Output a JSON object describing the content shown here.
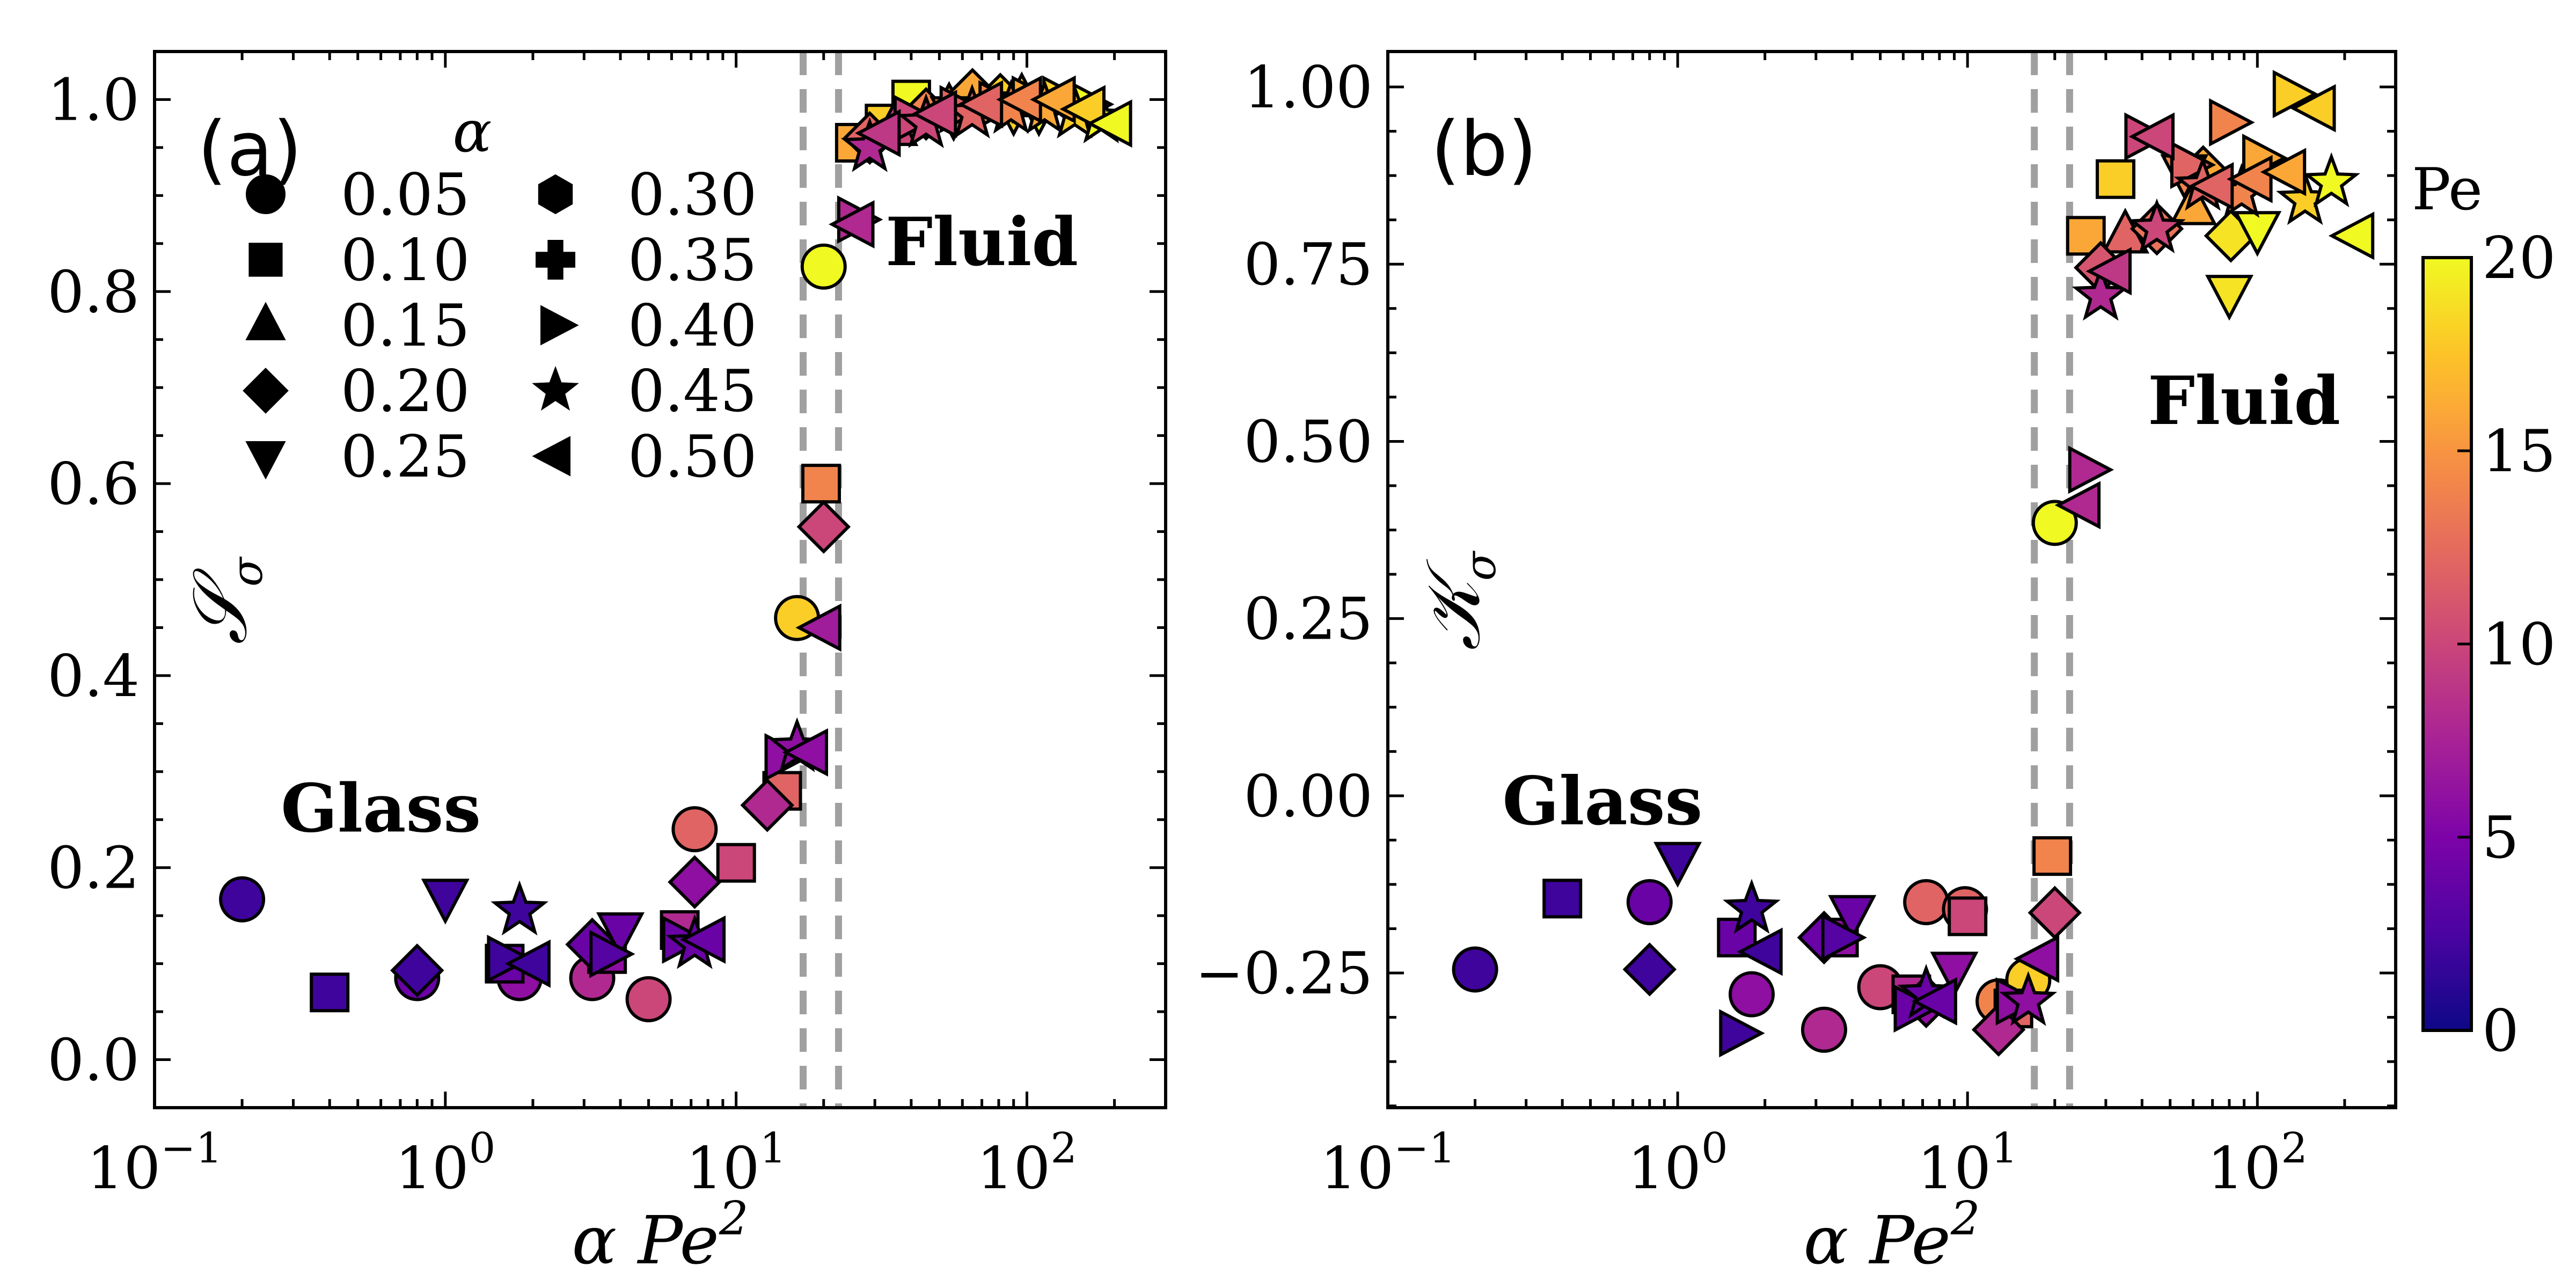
{
  "chart_data": [
    {
      "type": "scatter",
      "panel_label": "(a)",
      "ylabel": "S_σ",
      "ylabel_display": "𝒮",
      "ylabel_sub": "σ",
      "xlabel": "α Pe²",
      "xlabel_prefix": "α Pe",
      "xlabel_sup": "2",
      "xscale": "log",
      "xlim": [
        0.1,
        300
      ],
      "ylim": [
        -0.05,
        1.05
      ],
      "yticks": [
        0.0,
        0.2,
        0.4,
        0.6,
        0.8,
        1.0
      ],
      "ytick_labels": [
        "0.0",
        "0.2",
        "0.4",
        "0.6",
        "0.8",
        "1.0"
      ],
      "xticks": [
        0.1,
        1,
        10,
        100
      ],
      "xtick_bases": [
        "10",
        "10",
        "10",
        "10"
      ],
      "xtick_exps": [
        "−1",
        "0",
        "1",
        "2"
      ],
      "vlines": [
        17,
        22.5
      ],
      "annotations": [
        {
          "text": "Glass",
          "x": 0.6,
          "y": 0.26
        },
        {
          "text": "Fluid",
          "x": 70,
          "y": 0.85
        }
      ],
      "legend": {
        "title": "α",
        "placement": "upper-left",
        "entries": [
          {
            "marker": "circle",
            "label": "0.05"
          },
          {
            "marker": "square",
            "label": "0.10"
          },
          {
            "marker": "triangle-up",
            "label": "0.15"
          },
          {
            "marker": "diamond",
            "label": "0.20"
          },
          {
            "marker": "triangle-down",
            "label": "0.25"
          },
          {
            "marker": "hexagon",
            "label": "0.30"
          },
          {
            "marker": "plus",
            "label": "0.35"
          },
          {
            "marker": "triangle-right",
            "label": "0.40"
          },
          {
            "marker": "star",
            "label": "0.45"
          },
          {
            "marker": "triangle-left",
            "label": "0.50"
          }
        ]
      },
      "points": [
        {
          "m": "circle",
          "x": 0.2,
          "y": 0.167,
          "pe": 2
        },
        {
          "m": "circle",
          "x": 0.8,
          "y": 0.085,
          "pe": 4
        },
        {
          "m": "circle",
          "x": 1.8,
          "y": 0.085,
          "pe": 6
        },
        {
          "m": "circle",
          "x": 3.2,
          "y": 0.085,
          "pe": 8
        },
        {
          "m": "circle",
          "x": 5.0,
          "y": 0.063,
          "pe": 10
        },
        {
          "m": "circle",
          "x": 7.2,
          "y": 0.24,
          "pe": 12
        },
        {
          "m": "circle",
          "x": 16.2,
          "y": 0.46,
          "pe": 18
        },
        {
          "m": "circle",
          "x": 20,
          "y": 0.826,
          "pe": 20
        },
        {
          "m": "square",
          "x": 0.4,
          "y": 0.07,
          "pe": 2
        },
        {
          "m": "square",
          "x": 1.6,
          "y": 0.1,
          "pe": 4
        },
        {
          "m": "square",
          "x": 3.6,
          "y": 0.11,
          "pe": 6
        },
        {
          "m": "square",
          "x": 6.4,
          "y": 0.135,
          "pe": 8
        },
        {
          "m": "square",
          "x": 10,
          "y": 0.205,
          "pe": 10
        },
        {
          "m": "square",
          "x": 14.4,
          "y": 0.28,
          "pe": 12
        },
        {
          "m": "square",
          "x": 19.6,
          "y": 0.6,
          "pe": 14
        },
        {
          "m": "square",
          "x": 25.6,
          "y": 0.955,
          "pe": 16
        },
        {
          "m": "square",
          "x": 32.4,
          "y": 0.975,
          "pe": 18
        },
        {
          "m": "square",
          "x": 40,
          "y": 1.0,
          "pe": 20
        },
        {
          "m": "triangle-up",
          "x": 35,
          "y": 0.97,
          "pe": 10
        },
        {
          "m": "triangle-up",
          "x": 54,
          "y": 0.99,
          "pe": 14
        },
        {
          "m": "triangle-up",
          "x": 96,
          "y": 1.0,
          "pe": 18
        },
        {
          "m": "diamond",
          "x": 0.8,
          "y": 0.093,
          "pe": 2
        },
        {
          "m": "diamond",
          "x": 3.2,
          "y": 0.12,
          "pe": 4
        },
        {
          "m": "diamond",
          "x": 7.2,
          "y": 0.185,
          "pe": 6
        },
        {
          "m": "diamond",
          "x": 12.8,
          "y": 0.265,
          "pe": 8
        },
        {
          "m": "diamond",
          "x": 20,
          "y": 0.555,
          "pe": 10
        },
        {
          "m": "diamond",
          "x": 28.8,
          "y": 0.96,
          "pe": 12
        },
        {
          "m": "diamond",
          "x": 45,
          "y": 0.985,
          "pe": 14
        },
        {
          "m": "diamond",
          "x": 65,
          "y": 1.005,
          "pe": 16
        },
        {
          "m": "diamond",
          "x": 81,
          "y": 1.0,
          "pe": 18
        },
        {
          "m": "triangle-down",
          "x": 1.0,
          "y": 0.17,
          "pe": 2
        },
        {
          "m": "triangle-down",
          "x": 4.0,
          "y": 0.135,
          "pe": 4
        },
        {
          "m": "triangle-down",
          "x": 56,
          "y": 0.985,
          "pe": 14
        },
        {
          "m": "triangle-down",
          "x": 90,
          "y": 0.99,
          "pe": 18
        },
        {
          "m": "triangle-down",
          "x": 110,
          "y": 0.99,
          "pe": 20
        },
        {
          "m": "triangle-right",
          "x": 1.6,
          "y": 0.105,
          "pe": 2
        },
        {
          "m": "triangle-right",
          "x": 3.6,
          "y": 0.11,
          "pe": 3
        },
        {
          "m": "triangle-right",
          "x": 6.4,
          "y": 0.125,
          "pe": 4
        },
        {
          "m": "triangle-right",
          "x": 14.4,
          "y": 0.315,
          "pe": 6
        },
        {
          "m": "triangle-right",
          "x": 25.6,
          "y": 0.875,
          "pe": 8
        },
        {
          "m": "triangle-right",
          "x": 40,
          "y": 0.98,
          "pe": 10
        },
        {
          "m": "triangle-right",
          "x": 57.6,
          "y": 0.99,
          "pe": 12
        },
        {
          "m": "triangle-right",
          "x": 78.4,
          "y": 0.995,
          "pe": 14
        },
        {
          "m": "triangle-right",
          "x": 102,
          "y": 1.0,
          "pe": 16
        },
        {
          "m": "triangle-right",
          "x": 130,
          "y": 1.0,
          "pe": 18
        },
        {
          "m": "triangle-right",
          "x": 160,
          "y": 0.995,
          "pe": 20
        },
        {
          "m": "star",
          "x": 1.8,
          "y": 0.155,
          "pe": 2
        },
        {
          "m": "star",
          "x": 7.2,
          "y": 0.12,
          "pe": 4
        },
        {
          "m": "star",
          "x": 16.2,
          "y": 0.325,
          "pe": 6
        },
        {
          "m": "star",
          "x": 28.8,
          "y": 0.95,
          "pe": 8
        },
        {
          "m": "star",
          "x": 45,
          "y": 0.975,
          "pe": 10
        },
        {
          "m": "star",
          "x": 64.8,
          "y": 0.985,
          "pe": 12
        },
        {
          "m": "star",
          "x": 88.2,
          "y": 0.99,
          "pe": 14
        },
        {
          "m": "star",
          "x": 115,
          "y": 0.99,
          "pe": 16
        },
        {
          "m": "star",
          "x": 146,
          "y": 0.985,
          "pe": 18
        },
        {
          "m": "star",
          "x": 180,
          "y": 0.98,
          "pe": 20
        },
        {
          "m": "triangle-left",
          "x": 2.0,
          "y": 0.1,
          "pe": 2
        },
        {
          "m": "triangle-left",
          "x": 8.0,
          "y": 0.125,
          "pe": 4
        },
        {
          "m": "triangle-left",
          "x": 18,
          "y": 0.32,
          "pe": 6
        },
        {
          "m": "triangle-left",
          "x": 20,
          "y": 0.45,
          "pe": 7
        },
        {
          "m": "triangle-left",
          "x": 26,
          "y": 0.87,
          "pe": 8
        },
        {
          "m": "triangle-left",
          "x": 32,
          "y": 0.965,
          "pe": 9
        },
        {
          "m": "triangle-left",
          "x": 50,
          "y": 0.985,
          "pe": 10
        },
        {
          "m": "triangle-left",
          "x": 72,
          "y": 0.995,
          "pe": 12
        },
        {
          "m": "triangle-left",
          "x": 98,
          "y": 1.0,
          "pe": 14
        },
        {
          "m": "triangle-left",
          "x": 128,
          "y": 1.0,
          "pe": 16
        },
        {
          "m": "triangle-left",
          "x": 162,
          "y": 0.99,
          "pe": 18
        },
        {
          "m": "triangle-left",
          "x": 200,
          "y": 0.975,
          "pe": 20
        }
      ]
    },
    {
      "type": "scatter",
      "panel_label": "(b)",
      "ylabel": "K_σ",
      "ylabel_display": "𝒦",
      "ylabel_sub": "σ",
      "xlabel": "α Pe²",
      "xlabel_prefix": "α Pe",
      "xlabel_sup": "2",
      "xscale": "log",
      "xlim": [
        0.1,
        300
      ],
      "ylim": [
        -0.44,
        1.05
      ],
      "yticks": [
        -0.25,
        0.0,
        0.25,
        0.5,
        0.75,
        1.0
      ],
      "ytick_labels": [
        "−0.25",
        "0.00",
        "0.25",
        "0.50",
        "0.75",
        "1.00"
      ],
      "xticks": [
        0.1,
        1,
        10,
        100
      ],
      "xtick_bases": [
        "10",
        "10",
        "10",
        "10"
      ],
      "xtick_exps": [
        "−1",
        "0",
        "1",
        "2"
      ],
      "vlines": [
        17,
        22.5
      ],
      "annotations": [
        {
          "text": "Glass",
          "x": 0.55,
          "y": -0.01
        },
        {
          "text": "Fluid",
          "x": 90,
          "y": 0.555
        }
      ],
      "colorbar": {
        "label": "Pe",
        "range": [
          0,
          20
        ],
        "ticks": [
          0,
          5,
          10,
          15,
          20
        ],
        "tick_labels": [
          "0",
          "5",
          "10",
          "15",
          "20"
        ],
        "colormap": "plasma"
      },
      "points": [
        {
          "m": "circle",
          "x": 0.2,
          "y": -0.245,
          "pe": 2
        },
        {
          "m": "circle",
          "x": 0.8,
          "y": -0.15,
          "pe": 4
        },
        {
          "m": "circle",
          "x": 1.8,
          "y": -0.28,
          "pe": 6
        },
        {
          "m": "circle",
          "x": 3.2,
          "y": -0.33,
          "pe": 8
        },
        {
          "m": "circle",
          "x": 5.0,
          "y": -0.27,
          "pe": 10
        },
        {
          "m": "circle",
          "x": 7.2,
          "y": -0.15,
          "pe": 12
        },
        {
          "m": "circle",
          "x": 9.8,
          "y": -0.16,
          "pe": 12
        },
        {
          "m": "circle",
          "x": 12.8,
          "y": -0.29,
          "pe": 14
        },
        {
          "m": "circle",
          "x": 16.2,
          "y": -0.26,
          "pe": 18
        },
        {
          "m": "circle",
          "x": 20,
          "y": 0.385,
          "pe": 20
        },
        {
          "m": "square",
          "x": 0.4,
          "y": -0.145,
          "pe": 2
        },
        {
          "m": "square",
          "x": 1.6,
          "y": -0.2,
          "pe": 4
        },
        {
          "m": "square",
          "x": 3.6,
          "y": -0.2,
          "pe": 6
        },
        {
          "m": "square",
          "x": 6.4,
          "y": -0.28,
          "pe": 8
        },
        {
          "m": "square",
          "x": 10,
          "y": -0.17,
          "pe": 10
        },
        {
          "m": "square",
          "x": 14.4,
          "y": -0.3,
          "pe": 12
        },
        {
          "m": "square",
          "x": 19.6,
          "y": -0.085,
          "pe": 14
        },
        {
          "m": "square",
          "x": 25.6,
          "y": 0.79,
          "pe": 16
        },
        {
          "m": "square",
          "x": 32.4,
          "y": 0.87,
          "pe": 18
        },
        {
          "m": "triangle-up",
          "x": 35,
          "y": 0.79,
          "pe": 12
        },
        {
          "m": "triangle-up",
          "x": 60,
          "y": 0.83,
          "pe": 16
        },
        {
          "m": "diamond",
          "x": 0.8,
          "y": -0.245,
          "pe": 2
        },
        {
          "m": "diamond",
          "x": 3.2,
          "y": -0.2,
          "pe": 4
        },
        {
          "m": "diamond",
          "x": 7.2,
          "y": -0.29,
          "pe": 6
        },
        {
          "m": "diamond",
          "x": 12.8,
          "y": -0.33,
          "pe": 8
        },
        {
          "m": "diamond",
          "x": 20,
          "y": -0.165,
          "pe": 10
        },
        {
          "m": "diamond",
          "x": 28.8,
          "y": 0.745,
          "pe": 11
        },
        {
          "m": "diamond",
          "x": 45,
          "y": 0.8,
          "pe": 13
        },
        {
          "m": "diamond",
          "x": 65,
          "y": 0.88,
          "pe": 16
        },
        {
          "m": "diamond",
          "x": 81,
          "y": 0.79,
          "pe": 19
        },
        {
          "m": "triangle-down",
          "x": 1.0,
          "y": -0.09,
          "pe": 2
        },
        {
          "m": "triangle-down",
          "x": 4.0,
          "y": -0.165,
          "pe": 4
        },
        {
          "m": "triangle-down",
          "x": 9.0,
          "y": -0.245,
          "pe": 6
        },
        {
          "m": "triangle-down",
          "x": 56,
          "y": 0.88,
          "pe": 14
        },
        {
          "m": "triangle-down",
          "x": 80,
          "y": 0.71,
          "pe": 19
        },
        {
          "m": "triangle-down",
          "x": 100,
          "y": 0.8,
          "pe": 20
        },
        {
          "m": "triangle-right",
          "x": 1.6,
          "y": -0.335,
          "pe": 2
        },
        {
          "m": "triangle-right",
          "x": 3.6,
          "y": -0.2,
          "pe": 3
        },
        {
          "m": "triangle-right",
          "x": 6.4,
          "y": -0.3,
          "pe": 4
        },
        {
          "m": "triangle-right",
          "x": 14.4,
          "y": -0.29,
          "pe": 6
        },
        {
          "m": "triangle-right",
          "x": 25.6,
          "y": 0.46,
          "pe": 8
        },
        {
          "m": "triangle-right",
          "x": 40,
          "y": 0.93,
          "pe": 10
        },
        {
          "m": "triangle-right",
          "x": 57.6,
          "y": 0.89,
          "pe": 12
        },
        {
          "m": "triangle-right",
          "x": 78.4,
          "y": 0.95,
          "pe": 14
        },
        {
          "m": "triangle-right",
          "x": 102,
          "y": 0.9,
          "pe": 16
        },
        {
          "m": "triangle-right",
          "x": 130,
          "y": 0.99,
          "pe": 18
        },
        {
          "m": "star",
          "x": 1.8,
          "y": -0.16,
          "pe": 2
        },
        {
          "m": "star",
          "x": 7.2,
          "y": -0.28,
          "pe": 4
        },
        {
          "m": "star",
          "x": 16.2,
          "y": -0.29,
          "pe": 6
        },
        {
          "m": "star",
          "x": 28.8,
          "y": 0.705,
          "pe": 8
        },
        {
          "m": "star",
          "x": 45,
          "y": 0.8,
          "pe": 10
        },
        {
          "m": "star",
          "x": 64.8,
          "y": 0.86,
          "pe": 12
        },
        {
          "m": "star",
          "x": 88.2,
          "y": 0.85,
          "pe": 14
        },
        {
          "m": "star",
          "x": 146,
          "y": 0.84,
          "pe": 18
        },
        {
          "m": "star",
          "x": 180,
          "y": 0.865,
          "pe": 20
        },
        {
          "m": "triangle-left",
          "x": 2.0,
          "y": -0.22,
          "pe": 2
        },
        {
          "m": "triangle-left",
          "x": 8.0,
          "y": -0.29,
          "pe": 4
        },
        {
          "m": "triangle-left",
          "x": 18,
          "y": -0.23,
          "pe": 6
        },
        {
          "m": "triangle-left",
          "x": 25,
          "y": 0.41,
          "pe": 8
        },
        {
          "m": "triangle-left",
          "x": 32,
          "y": 0.74,
          "pe": 9
        },
        {
          "m": "triangle-left",
          "x": 45,
          "y": 0.93,
          "pe": 10
        },
        {
          "m": "triangle-left",
          "x": 72,
          "y": 0.86,
          "pe": 12
        },
        {
          "m": "triangle-left",
          "x": 98,
          "y": 0.87,
          "pe": 14
        },
        {
          "m": "triangle-left",
          "x": 128,
          "y": 0.88,
          "pe": 16
        },
        {
          "m": "triangle-left",
          "x": 162,
          "y": 0.97,
          "pe": 18
        },
        {
          "m": "triangle-left",
          "x": 220,
          "y": 0.79,
          "pe": 20
        }
      ]
    }
  ]
}
